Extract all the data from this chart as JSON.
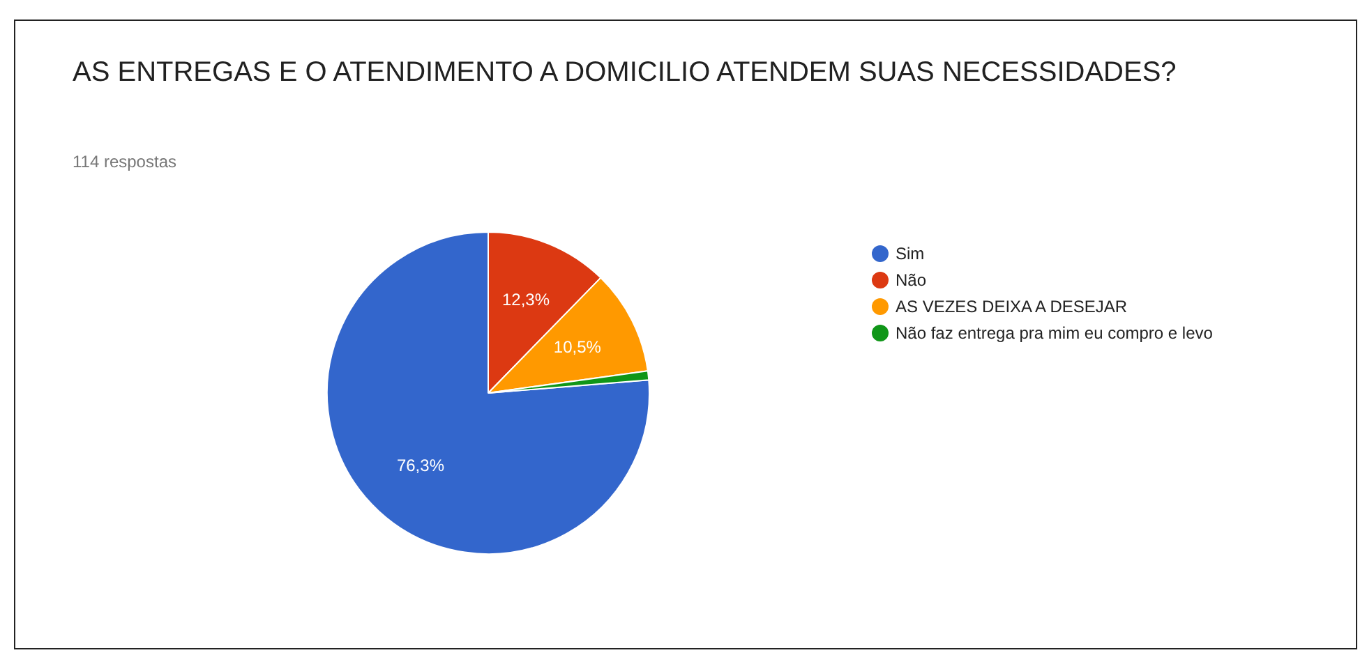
{
  "chart_data": {
    "type": "pie",
    "title": "AS ENTREGAS E O ATENDIMENTO A DOMICILIO ATENDEM SUAS NECESSIDADES?",
    "subtitle": "114 respostas",
    "categories": [
      "Sim",
      "Não",
      "AS VEZES DEIXA A DESEJAR",
      "Não faz entrega pra mim eu compro e levo"
    ],
    "values": [
      76.3,
      12.3,
      10.5,
      0.9
    ],
    "colors": [
      "#3366cc",
      "#dc3912",
      "#ff9900",
      "#109618"
    ],
    "value_labels": [
      "76,3%",
      "12,3%",
      "10,5%",
      null
    ],
    "legend": "right"
  }
}
